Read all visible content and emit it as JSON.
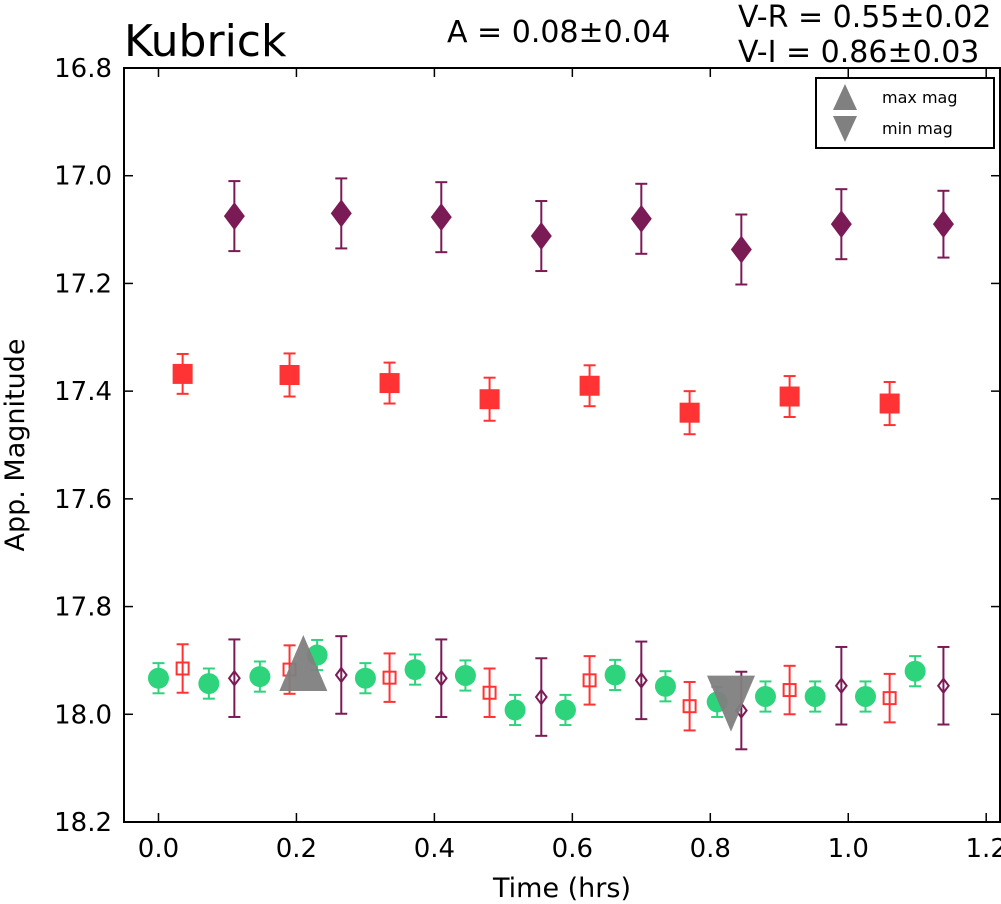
{
  "chart_data": {
    "type": "scatter",
    "title": "Kubrick",
    "annotations": {
      "amplitude": "A  = 0.08±0.04",
      "v_r": "V-R = 0.55±0.02",
      "v_i": "V-I  = 0.86±0.03"
    },
    "xlabel": "Time (hrs)",
    "ylabel": "App. Magnitude",
    "xlim": [
      -0.05,
      1.22
    ],
    "ylim": [
      18.2,
      16.8
    ],
    "y_inverted": true,
    "x_ticks": [
      "0.0",
      "0.2",
      "0.4",
      "0.6",
      "0.8",
      "1.0",
      "1.2"
    ],
    "y_ticks": [
      "16.8",
      "17.0",
      "17.2",
      "17.4",
      "17.6",
      "17.8",
      "18.0",
      "18.2"
    ],
    "grid": false,
    "legend": {
      "position": "top-right",
      "entries": [
        {
          "label": "max mag",
          "marker": "triangle-up",
          "color": "#808080"
        },
        {
          "label": "min mag",
          "marker": "triangle-down",
          "color": "#808080"
        }
      ]
    },
    "series": [
      {
        "marker": "diamond",
        "filled": true,
        "color": "#7b1b56",
        "points": [
          {
            "x": 0.11,
            "y": 17.075,
            "err": 0.065
          },
          {
            "x": 0.265,
            "y": 17.07,
            "err": 0.065
          },
          {
            "x": 0.41,
            "y": 17.077,
            "err": 0.065
          },
          {
            "x": 0.555,
            "y": 17.112,
            "err": 0.065
          },
          {
            "x": 0.7,
            "y": 17.08,
            "err": 0.065
          },
          {
            "x": 0.845,
            "y": 17.137,
            "err": 0.065
          },
          {
            "x": 0.99,
            "y": 17.09,
            "err": 0.065
          },
          {
            "x": 1.138,
            "y": 17.09,
            "err": 0.062
          }
        ]
      },
      {
        "marker": "square",
        "filled": true,
        "color": "#ff3333",
        "points": [
          {
            "x": 0.035,
            "y": 17.368,
            "err": 0.037
          },
          {
            "x": 0.19,
            "y": 17.37,
            "err": 0.04
          },
          {
            "x": 0.335,
            "y": 17.385,
            "err": 0.038
          },
          {
            "x": 0.48,
            "y": 17.415,
            "err": 0.04
          },
          {
            "x": 0.625,
            "y": 17.39,
            "err": 0.038
          },
          {
            "x": 0.77,
            "y": 17.44,
            "err": 0.04
          },
          {
            "x": 0.915,
            "y": 17.41,
            "err": 0.038
          },
          {
            "x": 1.06,
            "y": 17.423,
            "err": 0.04
          }
        ]
      },
      {
        "marker": "circle",
        "filled": true,
        "color": "#2ed47c",
        "points": [
          {
            "x": 0.0,
            "y": 17.933,
            "err": 0.028
          },
          {
            "x": 0.073,
            "y": 17.943,
            "err": 0.028
          },
          {
            "x": 0.147,
            "y": 17.93,
            "err": 0.028
          },
          {
            "x": 0.23,
            "y": 17.89,
            "err": 0.028
          },
          {
            "x": 0.3,
            "y": 17.933,
            "err": 0.028
          },
          {
            "x": 0.372,
            "y": 17.917,
            "err": 0.028
          },
          {
            "x": 0.445,
            "y": 17.928,
            "err": 0.028
          },
          {
            "x": 0.517,
            "y": 17.992,
            "err": 0.028
          },
          {
            "x": 0.59,
            "y": 17.992,
            "err": 0.028
          },
          {
            "x": 0.662,
            "y": 17.927,
            "err": 0.028
          },
          {
            "x": 0.735,
            "y": 17.948,
            "err": 0.028
          },
          {
            "x": 0.81,
            "y": 17.977,
            "err": 0.028
          },
          {
            "x": 0.88,
            "y": 17.967,
            "err": 0.028
          },
          {
            "x": 0.952,
            "y": 17.967,
            "err": 0.028
          },
          {
            "x": 1.025,
            "y": 17.967,
            "err": 0.028
          },
          {
            "x": 1.097,
            "y": 17.92,
            "err": 0.028
          }
        ]
      },
      {
        "marker": "square",
        "filled": false,
        "color": "#ff3333",
        "points": [
          {
            "x": 0.035,
            "y": 17.915,
            "err": 0.045
          },
          {
            "x": 0.19,
            "y": 17.917,
            "err": 0.045
          },
          {
            "x": 0.335,
            "y": 17.932,
            "err": 0.045
          },
          {
            "x": 0.48,
            "y": 17.96,
            "err": 0.045
          },
          {
            "x": 0.625,
            "y": 17.937,
            "err": 0.045
          },
          {
            "x": 0.77,
            "y": 17.985,
            "err": 0.045
          },
          {
            "x": 0.915,
            "y": 17.955,
            "err": 0.045
          },
          {
            "x": 1.06,
            "y": 17.97,
            "err": 0.045
          }
        ]
      },
      {
        "marker": "diamond",
        "filled": false,
        "color": "#7b1b56",
        "points": [
          {
            "x": 0.11,
            "y": 17.933,
            "err": 0.072
          },
          {
            "x": 0.265,
            "y": 17.927,
            "err": 0.072
          },
          {
            "x": 0.41,
            "y": 17.933,
            "err": 0.072
          },
          {
            "x": 0.555,
            "y": 17.968,
            "err": 0.072
          },
          {
            "x": 0.7,
            "y": 17.937,
            "err": 0.072
          },
          {
            "x": 0.845,
            "y": 17.993,
            "err": 0.072
          },
          {
            "x": 0.99,
            "y": 17.947,
            "err": 0.072
          },
          {
            "x": 1.138,
            "y": 17.947,
            "err": 0.072
          }
        ]
      }
    ],
    "extrema": [
      {
        "label": "max mag",
        "x": 0.21,
        "y": 17.91,
        "marker": "triangle-up",
        "color": "#808080"
      },
      {
        "label": "min mag",
        "x": 0.83,
        "y": 17.975,
        "marker": "triangle-down",
        "color": "#808080"
      }
    ]
  }
}
